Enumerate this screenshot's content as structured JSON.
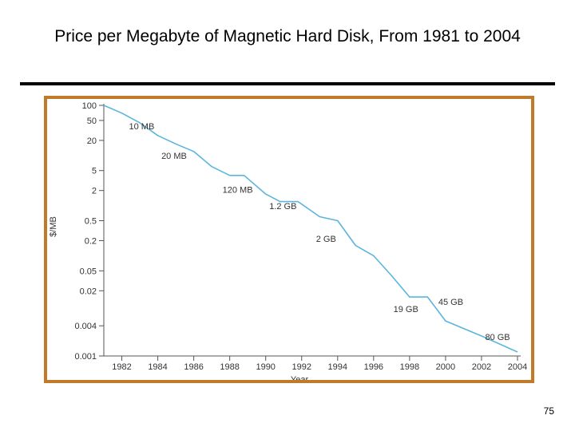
{
  "slide": {
    "title": "Price per Megabyte of Magnetic Hard Disk, From 1981 to 2004",
    "page_number": "75"
  },
  "colors": {
    "line": "#5bb5dc",
    "frame": "#c07a2a",
    "axis": "#555555"
  },
  "chart_data": {
    "type": "line",
    "xlabel": "Year",
    "ylabel": "$/MB",
    "y_scale": "log",
    "xlim": [
      1981,
      2004
    ],
    "ylim": [
      0.001,
      100
    ],
    "x_ticks": [
      1982,
      1984,
      1986,
      1988,
      1990,
      1992,
      1994,
      1996,
      1998,
      2000,
      2002,
      2004
    ],
    "y_ticks": [
      {
        "value": 100,
        "label": "100"
      },
      {
        "value": 50,
        "label": "50"
      },
      {
        "value": 20,
        "label": "20"
      },
      {
        "value": 5,
        "label": "5"
      },
      {
        "value": 2,
        "label": "2"
      },
      {
        "value": 0.5,
        "label": "0.5"
      },
      {
        "value": 0.2,
        "label": "0.2"
      },
      {
        "value": 0.05,
        "label": "0.05"
      },
      {
        "value": 0.02,
        "label": "0.02"
      },
      {
        "value": 0.004,
        "label": "0.004"
      },
      {
        "value": 0.001,
        "label": "0.001"
      }
    ],
    "grid": false,
    "series": [
      {
        "points": [
          {
            "x": 1981.0,
            "y": 100
          },
          {
            "x": 1982.0,
            "y": 70
          },
          {
            "x": 1983.0,
            "y": 45
          },
          {
            "x": 1984.0,
            "y": 25
          },
          {
            "x": 1985.0,
            "y": 17
          },
          {
            "x": 1986.0,
            "y": 12
          },
          {
            "x": 1987.0,
            "y": 6
          },
          {
            "x": 1988.0,
            "y": 4
          },
          {
            "x": 1988.8,
            "y": 4
          },
          {
            "x": 1990.0,
            "y": 1.7
          },
          {
            "x": 1990.8,
            "y": 1.2
          },
          {
            "x": 1991.8,
            "y": 1.2
          },
          {
            "x": 1993.0,
            "y": 0.6
          },
          {
            "x": 1994.0,
            "y": 0.5
          },
          {
            "x": 1995.0,
            "y": 0.16
          },
          {
            "x": 1996.0,
            "y": 0.1
          },
          {
            "x": 1997.0,
            "y": 0.04
          },
          {
            "x": 1998.0,
            "y": 0.015
          },
          {
            "x": 1999.0,
            "y": 0.015
          },
          {
            "x": 2000.0,
            "y": 0.005
          },
          {
            "x": 2002.0,
            "y": 0.0025
          },
          {
            "x": 2004.0,
            "y": 0.0012
          }
        ]
      }
    ],
    "annotations": [
      {
        "text": "10 MB",
        "x": 1982.4,
        "y": 33
      },
      {
        "text": "20 MB",
        "x": 1984.2,
        "y": 8.5
      },
      {
        "text": "120 MB",
        "x": 1987.6,
        "y": 1.8
      },
      {
        "text": "1.2 GB",
        "x": 1990.2,
        "y": 0.85
      },
      {
        "text": "2 GB",
        "x": 1992.8,
        "y": 0.19
      },
      {
        "text": "19 GB",
        "x": 1997.1,
        "y": 0.0075
      },
      {
        "text": "45 GB",
        "x": 1999.6,
        "y": 0.0105
      },
      {
        "text": "80 GB",
        "x": 2002.2,
        "y": 0.0021
      }
    ]
  }
}
